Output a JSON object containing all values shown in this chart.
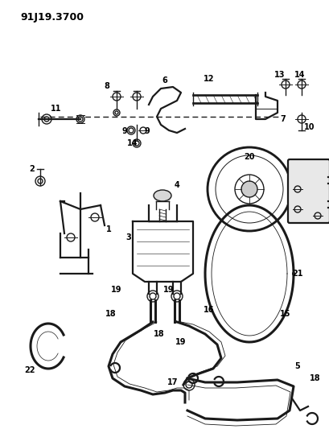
{
  "title": "91J19.3700",
  "bg_color": "#ffffff",
  "line_color": "#1a1a1a",
  "lw": 1.0,
  "lw_hose": 2.2,
  "lw_thick": 1.6
}
